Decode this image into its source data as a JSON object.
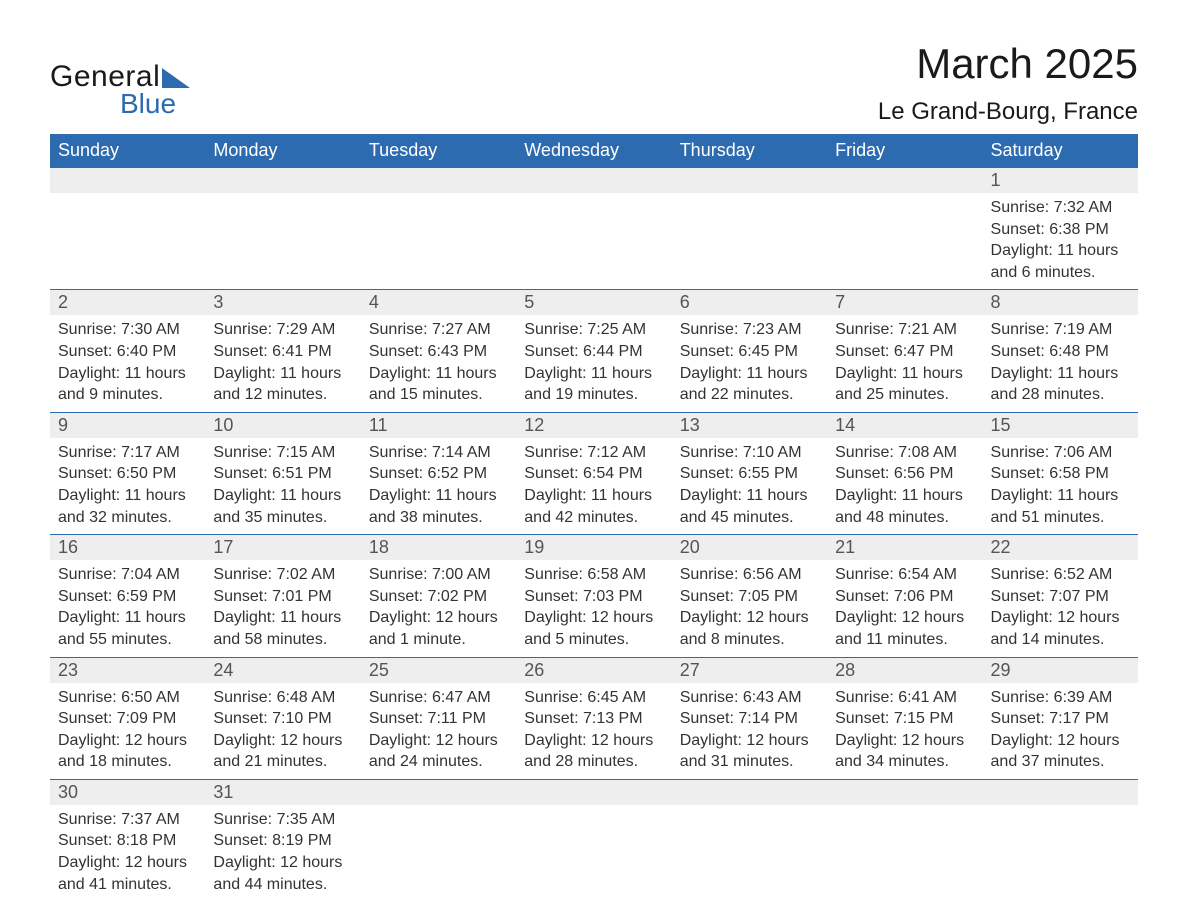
{
  "brand": {
    "general": "General",
    "blue": "Blue"
  },
  "title": "March 2025",
  "location": "Le Grand-Bourg, France",
  "colors": {
    "header_bg": "#2d6bb0",
    "header_text": "#ffffff",
    "daynum_bg": "#eeeeee",
    "row_border": "#2d6bb0",
    "body_text": "#333333",
    "title_text": "#1a1a1a",
    "page_bg": "#ffffff"
  },
  "typography": {
    "title_fontsize": 42,
    "location_fontsize": 24,
    "header_fontsize": 18,
    "daynum_fontsize": 18,
    "detail_fontsize": 16
  },
  "dayNames": [
    "Sunday",
    "Monday",
    "Tuesday",
    "Wednesday",
    "Thursday",
    "Friday",
    "Saturday"
  ],
  "weeks": [
    [
      null,
      null,
      null,
      null,
      null,
      null,
      {
        "n": "1",
        "sr": "Sunrise: 7:32 AM",
        "ss": "Sunset: 6:38 PM",
        "d1": "Daylight: 11 hours",
        "d2": "and 6 minutes."
      }
    ],
    [
      {
        "n": "2",
        "sr": "Sunrise: 7:30 AM",
        "ss": "Sunset: 6:40 PM",
        "d1": "Daylight: 11 hours",
        "d2": "and 9 minutes."
      },
      {
        "n": "3",
        "sr": "Sunrise: 7:29 AM",
        "ss": "Sunset: 6:41 PM",
        "d1": "Daylight: 11 hours",
        "d2": "and 12 minutes."
      },
      {
        "n": "4",
        "sr": "Sunrise: 7:27 AM",
        "ss": "Sunset: 6:43 PM",
        "d1": "Daylight: 11 hours",
        "d2": "and 15 minutes."
      },
      {
        "n": "5",
        "sr": "Sunrise: 7:25 AM",
        "ss": "Sunset: 6:44 PM",
        "d1": "Daylight: 11 hours",
        "d2": "and 19 minutes."
      },
      {
        "n": "6",
        "sr": "Sunrise: 7:23 AM",
        "ss": "Sunset: 6:45 PM",
        "d1": "Daylight: 11 hours",
        "d2": "and 22 minutes."
      },
      {
        "n": "7",
        "sr": "Sunrise: 7:21 AM",
        "ss": "Sunset: 6:47 PM",
        "d1": "Daylight: 11 hours",
        "d2": "and 25 minutes."
      },
      {
        "n": "8",
        "sr": "Sunrise: 7:19 AM",
        "ss": "Sunset: 6:48 PM",
        "d1": "Daylight: 11 hours",
        "d2": "and 28 minutes."
      }
    ],
    [
      {
        "n": "9",
        "sr": "Sunrise: 7:17 AM",
        "ss": "Sunset: 6:50 PM",
        "d1": "Daylight: 11 hours",
        "d2": "and 32 minutes."
      },
      {
        "n": "10",
        "sr": "Sunrise: 7:15 AM",
        "ss": "Sunset: 6:51 PM",
        "d1": "Daylight: 11 hours",
        "d2": "and 35 minutes."
      },
      {
        "n": "11",
        "sr": "Sunrise: 7:14 AM",
        "ss": "Sunset: 6:52 PM",
        "d1": "Daylight: 11 hours",
        "d2": "and 38 minutes."
      },
      {
        "n": "12",
        "sr": "Sunrise: 7:12 AM",
        "ss": "Sunset: 6:54 PM",
        "d1": "Daylight: 11 hours",
        "d2": "and 42 minutes."
      },
      {
        "n": "13",
        "sr": "Sunrise: 7:10 AM",
        "ss": "Sunset: 6:55 PM",
        "d1": "Daylight: 11 hours",
        "d2": "and 45 minutes."
      },
      {
        "n": "14",
        "sr": "Sunrise: 7:08 AM",
        "ss": "Sunset: 6:56 PM",
        "d1": "Daylight: 11 hours",
        "d2": "and 48 minutes."
      },
      {
        "n": "15",
        "sr": "Sunrise: 7:06 AM",
        "ss": "Sunset: 6:58 PM",
        "d1": "Daylight: 11 hours",
        "d2": "and 51 minutes."
      }
    ],
    [
      {
        "n": "16",
        "sr": "Sunrise: 7:04 AM",
        "ss": "Sunset: 6:59 PM",
        "d1": "Daylight: 11 hours",
        "d2": "and 55 minutes."
      },
      {
        "n": "17",
        "sr": "Sunrise: 7:02 AM",
        "ss": "Sunset: 7:01 PM",
        "d1": "Daylight: 11 hours",
        "d2": "and 58 minutes."
      },
      {
        "n": "18",
        "sr": "Sunrise: 7:00 AM",
        "ss": "Sunset: 7:02 PM",
        "d1": "Daylight: 12 hours",
        "d2": "and 1 minute."
      },
      {
        "n": "19",
        "sr": "Sunrise: 6:58 AM",
        "ss": "Sunset: 7:03 PM",
        "d1": "Daylight: 12 hours",
        "d2": "and 5 minutes."
      },
      {
        "n": "20",
        "sr": "Sunrise: 6:56 AM",
        "ss": "Sunset: 7:05 PM",
        "d1": "Daylight: 12 hours",
        "d2": "and 8 minutes."
      },
      {
        "n": "21",
        "sr": "Sunrise: 6:54 AM",
        "ss": "Sunset: 7:06 PM",
        "d1": "Daylight: 12 hours",
        "d2": "and 11 minutes."
      },
      {
        "n": "22",
        "sr": "Sunrise: 6:52 AM",
        "ss": "Sunset: 7:07 PM",
        "d1": "Daylight: 12 hours",
        "d2": "and 14 minutes."
      }
    ],
    [
      {
        "n": "23",
        "sr": "Sunrise: 6:50 AM",
        "ss": "Sunset: 7:09 PM",
        "d1": "Daylight: 12 hours",
        "d2": "and 18 minutes."
      },
      {
        "n": "24",
        "sr": "Sunrise: 6:48 AM",
        "ss": "Sunset: 7:10 PM",
        "d1": "Daylight: 12 hours",
        "d2": "and 21 minutes."
      },
      {
        "n": "25",
        "sr": "Sunrise: 6:47 AM",
        "ss": "Sunset: 7:11 PM",
        "d1": "Daylight: 12 hours",
        "d2": "and 24 minutes."
      },
      {
        "n": "26",
        "sr": "Sunrise: 6:45 AM",
        "ss": "Sunset: 7:13 PM",
        "d1": "Daylight: 12 hours",
        "d2": "and 28 minutes."
      },
      {
        "n": "27",
        "sr": "Sunrise: 6:43 AM",
        "ss": "Sunset: 7:14 PM",
        "d1": "Daylight: 12 hours",
        "d2": "and 31 minutes."
      },
      {
        "n": "28",
        "sr": "Sunrise: 6:41 AM",
        "ss": "Sunset: 7:15 PM",
        "d1": "Daylight: 12 hours",
        "d2": "and 34 minutes."
      },
      {
        "n": "29",
        "sr": "Sunrise: 6:39 AM",
        "ss": "Sunset: 7:17 PM",
        "d1": "Daylight: 12 hours",
        "d2": "and 37 minutes."
      }
    ],
    [
      {
        "n": "30",
        "sr": "Sunrise: 7:37 AM",
        "ss": "Sunset: 8:18 PM",
        "d1": "Daylight: 12 hours",
        "d2": "and 41 minutes."
      },
      {
        "n": "31",
        "sr": "Sunrise: 7:35 AM",
        "ss": "Sunset: 8:19 PM",
        "d1": "Daylight: 12 hours",
        "d2": "and 44 minutes."
      },
      null,
      null,
      null,
      null,
      null
    ]
  ]
}
